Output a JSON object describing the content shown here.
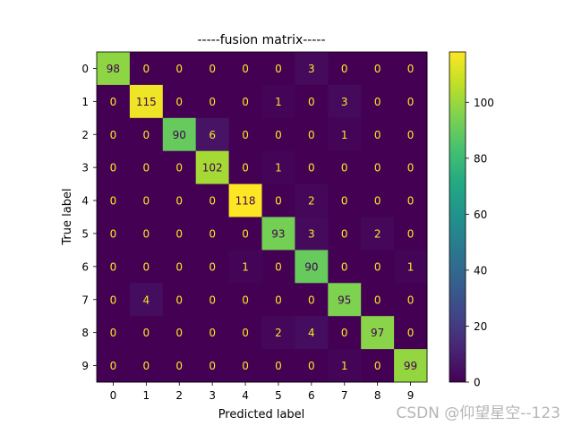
{
  "chart_data": {
    "type": "heatmap",
    "title": "-----fusion matrix-----",
    "xlabel": "Predicted label",
    "ylabel": "True label",
    "x_categories": [
      "0",
      "1",
      "2",
      "3",
      "4",
      "5",
      "6",
      "7",
      "8",
      "9"
    ],
    "y_categories": [
      "0",
      "1",
      "2",
      "3",
      "4",
      "5",
      "6",
      "7",
      "8",
      "9"
    ],
    "values": [
      [
        98,
        0,
        0,
        0,
        0,
        0,
        3,
        0,
        0,
        0
      ],
      [
        0,
        115,
        0,
        0,
        0,
        1,
        0,
        3,
        0,
        0
      ],
      [
        0,
        0,
        90,
        6,
        0,
        0,
        0,
        1,
        0,
        0
      ],
      [
        0,
        0,
        0,
        102,
        0,
        1,
        0,
        0,
        0,
        0
      ],
      [
        0,
        0,
        0,
        0,
        118,
        0,
        2,
        0,
        0,
        0
      ],
      [
        0,
        0,
        0,
        0,
        0,
        93,
        3,
        0,
        2,
        0
      ],
      [
        0,
        0,
        0,
        0,
        1,
        0,
        90,
        0,
        0,
        1
      ],
      [
        0,
        4,
        0,
        0,
        0,
        0,
        0,
        95,
        0,
        0
      ],
      [
        0,
        0,
        0,
        0,
        0,
        2,
        4,
        0,
        97,
        0
      ],
      [
        0,
        0,
        0,
        0,
        0,
        0,
        0,
        1,
        0,
        99
      ]
    ],
    "colorbar": {
      "colormap": "viridis",
      "range": [
        0,
        118
      ],
      "ticks": [
        0,
        20,
        40,
        60,
        80,
        100
      ]
    },
    "grid": false
  },
  "watermark": "CSDN @仰望星空--123"
}
